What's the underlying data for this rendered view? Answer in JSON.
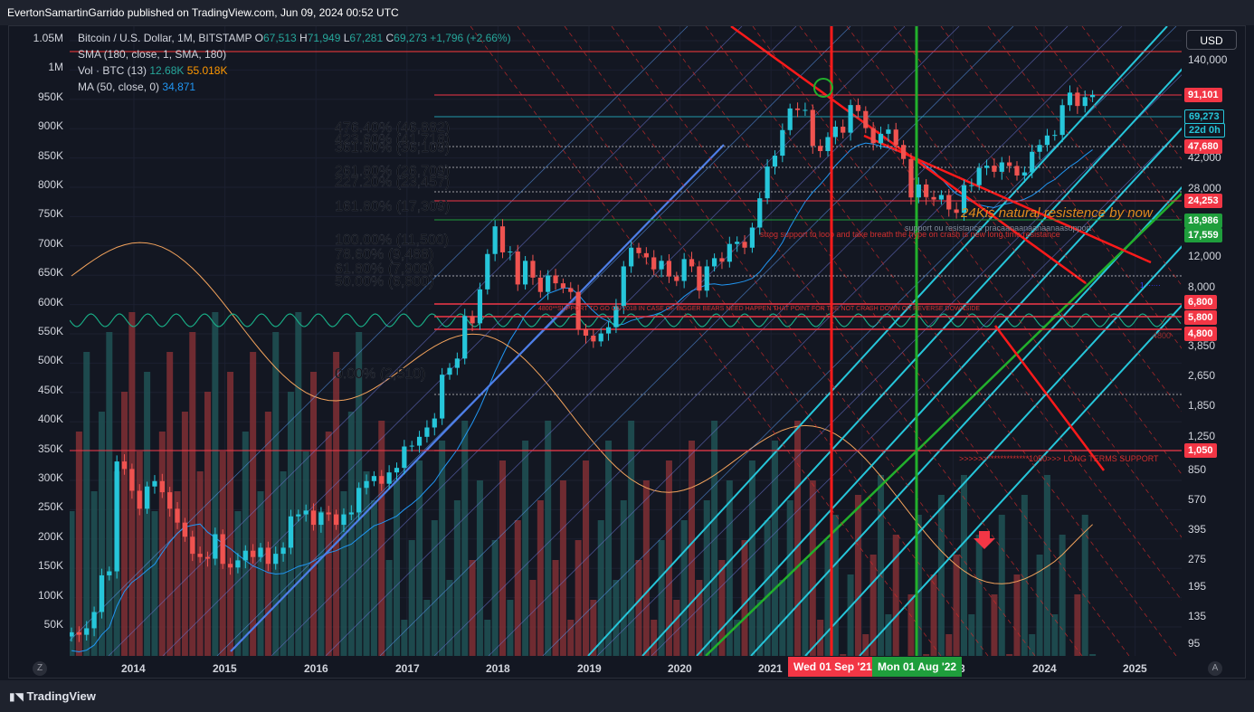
{
  "header": {
    "published": "EvertonSamartinGarrido published on TradingView.com, Jun 09, 2024 00:52 UTC"
  },
  "legend": {
    "symbol": "Bitcoin / U.S. Dollar, 1M, BITSTAMP",
    "o_label": "O",
    "o": "67,513",
    "h_label": "H",
    "h": "71,949",
    "l_label": "L",
    "l": "67,281",
    "c_label": "C",
    "c": "69,273",
    "change": "+1,796 (+2.66%)",
    "sma": "SMA (180, close, 1, SMA, 180)",
    "vol_label": "Vol · BTC (13)",
    "vol1": "12.68K",
    "vol2": "55.018K",
    "ma_label": "MA (50, close, 0)",
    "ma": "34,871"
  },
  "currency": "USD",
  "brand": "TradingView",
  "colors": {
    "up": "#26c6da",
    "down": "#ef5350",
    "vol_up": "#1f4f52",
    "vol_down": "#7a2e33",
    "red_line": "#ff1a1a",
    "green_line": "#22b02c",
    "cyan_line": "#26c6da"
  },
  "left_axis": {
    "labels": [
      "1.05M",
      "1M",
      "950K",
      "900K",
      "850K",
      "800K",
      "750K",
      "700K",
      "650K",
      "600K",
      "550K",
      "500K",
      "450K",
      "400K",
      "350K",
      "300K",
      "250K",
      "200K",
      "150K",
      "100K",
      "50K"
    ]
  },
  "right_axis": {
    "labels": [
      "140,000",
      "42,000",
      "28,000",
      "12,000",
      "8,000",
      "3,850",
      "2,650",
      "1,850",
      "1,250",
      "850",
      "570",
      "395",
      "275",
      "195",
      "135",
      "95"
    ]
  },
  "price_badges": [
    {
      "text": "91,101",
      "color": "#f23645"
    },
    {
      "text": "69,273",
      "color": "#26c6da",
      "dark": true
    },
    {
      "text": "22d 0h",
      "color": "#26c6da",
      "dark": true
    },
    {
      "text": "47,680",
      "color": "#f23645"
    },
    {
      "text": "24,253",
      "color": "#f23645"
    },
    {
      "text": "18,986",
      "color": "#1f9e3c"
    },
    {
      "text": "17,559",
      "color": "#1f9e3c"
    },
    {
      "text": "6,800",
      "color": "#f23645"
    },
    {
      "text": "5,800",
      "color": "#f23645"
    },
    {
      "text": "4,800",
      "color": "#f23645"
    },
    {
      "text": "1,050",
      "color": "#f23645"
    }
  ],
  "x_axis": {
    "labels": [
      "2014",
      "2015",
      "2016",
      "2017",
      "2018",
      "2019",
      "2020",
      "2021",
      "3",
      "2024",
      "2025"
    ],
    "date_badges": [
      {
        "text": "Wed 01 Sep '21",
        "color": "#f23645"
      },
      {
        "text": "Mon 01 Aug '22",
        "color": "#1f9e3c"
      }
    ]
  },
  "fib_labels": [
    "476.40% (46,882)",
    "423.60% (41,718)",
    "361.80% (36,109)",
    "261.80% (26,709)",
    "227.20% (23,457)",
    "161.80% (17,309)",
    "100.00% (11,500)",
    "78.60% (9,488)",
    "61.80% (7,909)",
    "50.00% (6,800)",
    "0.00% (2,510)"
  ],
  "annotations": {
    "resistance": "24Kis natural resistence by now",
    "strong_support": "strog support to loop and take breath the hype on crash is new long time resistance",
    "support_note": "support ou resistance pracaanaanaanaanaasupport",
    "long_term": ">>>>>>*************1050>>> LONG TERMS SUPPORT",
    "bearmarket": "4800**SUPPORT TO GO ON 2018 IN CASE OF BIGGER BEARS NEED HAPPEN THAT POINT FOR THE NOT CRASH DOWN OR REVERSE DOWNSIDE",
    "val_4800": "4800",
    "dots_label": "1 ······"
  },
  "chart_data": {
    "type": "candlestick",
    "title": "Bitcoin / U.S. Dollar, 1M, BITSTAMP",
    "y_scale": "log",
    "ohlc_last": {
      "open": 67513,
      "high": 71949,
      "low": 67281,
      "close": 69273
    },
    "x_range": [
      "2013-06",
      "2024-06"
    ],
    "series": [
      {
        "name": "SMA (180, close, 1, SMA, 180)"
      },
      {
        "name": "Vol · BTC (13)",
        "values": [
          12680,
          55018
        ]
      },
      {
        "name": "MA (50, close, 0)",
        "values": [
          34871
        ]
      }
    ],
    "horizontal_levels": [
      91101,
      69273,
      47680,
      24253,
      18986,
      17559,
      6800,
      5800,
      4800,
      1050
    ],
    "vertical_markers": [
      "Wed 01 Sep '21",
      "Mon 01 Aug '22"
    ],
    "monthly_close": [
      100,
      97,
      105,
      128,
      200,
      210,
      800,
      730,
      560,
      450,
      590,
      630,
      550,
      450,
      380,
      320,
      260,
      250,
      245,
      330,
      230,
      220,
      240,
      270,
      250,
      280,
      230,
      260,
      280,
      410,
      420,
      440,
      370,
      430,
      420,
      370,
      420,
      430,
      580,
      630,
      670,
      610,
      700,
      740,
      960,
      970,
      1080,
      1210,
      1350,
      2300,
      2500,
      2800,
      4700,
      4300,
      6500,
      10000,
      14000,
      10200,
      10300,
      6900,
      9200,
      7500,
      6300,
      7700,
      7000,
      6600,
      6300,
      4000,
      3700,
      3450,
      3800,
      4100,
      5300,
      8600,
      10800,
      10100,
      9600,
      8300,
      9200,
      7600,
      7200,
      9400,
      8600,
      6400,
      8600,
      9500,
      9100,
      11300,
      11600,
      10800,
      13800,
      19700,
      29000,
      33100,
      45200,
      58800,
      57700,
      57800,
      37300,
      35000,
      41500,
      47100,
      43800,
      61300,
      57000,
      46300,
      38500,
      43200,
      45500,
      37700,
      31800,
      19900,
      23300,
      20000,
      19400,
      20500,
      17200,
      16500,
      23100,
      23100,
      28500,
      29300,
      27200,
      30500,
      29200,
      26000,
      27000,
      34700,
      37700,
      42300,
      42600,
      61200,
      71300,
      60600,
      67500,
      69273
    ],
    "fib_levels": [
      46882,
      41718,
      36109,
      26709,
      23457,
      17309,
      11500,
      9488,
      7909,
      6800,
      2510
    ]
  }
}
